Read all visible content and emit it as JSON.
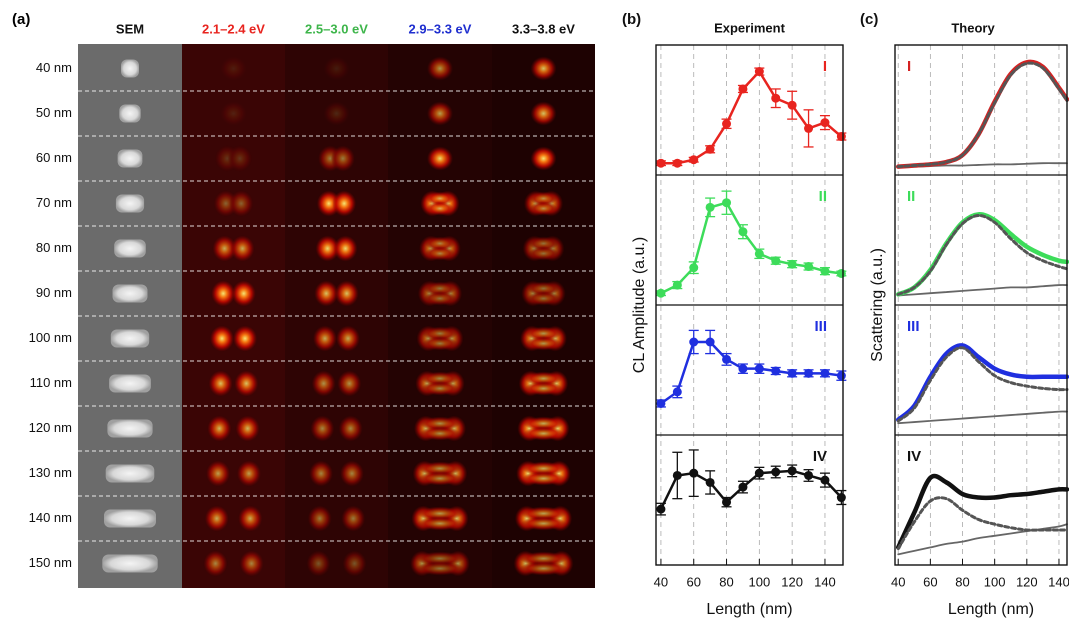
{
  "panel_a": {
    "label": "(a)",
    "columns": [
      {
        "text": "SEM",
        "color": "#111111"
      },
      {
        "text": "2.1–2.4 eV",
        "color": "#e8241f"
      },
      {
        "text": "2.5–3.0 eV",
        "color": "#3db54a"
      },
      {
        "text": "2.9–3.3 eV",
        "color": "#1f2fcf"
      },
      {
        "text": "3.3–3.8 eV",
        "color": "#111111"
      }
    ],
    "rows": [
      "40 nm",
      "50 nm",
      "60 nm",
      "70 nm",
      "80 nm",
      "90 nm",
      "100 nm",
      "110 nm",
      "120 nm",
      "130 nm",
      "140 nm",
      "150 nm"
    ]
  },
  "chart_data": [
    {
      "type": "line",
      "label": "(b)",
      "title": "Experiment",
      "xlabel": "Length (nm)",
      "ylabel": "CL Amplitude (a.u.)",
      "xlim": [
        37,
        151
      ],
      "xticks": [
        40,
        60,
        80,
        100,
        120,
        140
      ],
      "grid": true,
      "markers": true,
      "x": [
        40,
        50,
        60,
        70,
        80,
        90,
        100,
        110,
        120,
        130,
        140,
        150
      ],
      "panels": [
        {
          "label": "I",
          "ylim": [
            0,
            1
          ],
          "series": [
            {
              "color": "#e8241f",
              "values": [
                0.05,
                0.05,
                0.08,
                0.17,
                0.39,
                0.69,
                0.84,
                0.61,
                0.55,
                0.35,
                0.4,
                0.28
              ],
              "errors": [
                0.02,
                0.02,
                0.02,
                0.03,
                0.04,
                0.03,
                0.03,
                0.08,
                0.12,
                0.16,
                0.06,
                0.03
              ]
            }
          ]
        },
        {
          "label": "II",
          "ylim": [
            0,
            1
          ],
          "series": [
            {
              "color": "#3ddc5a",
              "values": [
                0.05,
                0.12,
                0.27,
                0.79,
                0.83,
                0.58,
                0.39,
                0.33,
                0.3,
                0.28,
                0.24,
                0.22
              ],
              "errors": [
                0.02,
                0.03,
                0.05,
                0.08,
                0.1,
                0.06,
                0.04,
                0.03,
                0.03,
                0.03,
                0.03,
                0.02
              ]
            }
          ]
        },
        {
          "label": "III",
          "ylim": [
            0,
            1
          ],
          "series": [
            {
              "color": "#1f2fdf",
              "values": [
                0.22,
                0.32,
                0.75,
                0.75,
                0.6,
                0.52,
                0.52,
                0.5,
                0.48,
                0.48,
                0.48,
                0.46
              ],
              "errors": [
                0.03,
                0.05,
                0.1,
                0.1,
                0.05,
                0.04,
                0.04,
                0.03,
                0.03,
                0.03,
                0.03,
                0.04
              ]
            }
          ]
        },
        {
          "label": "IV",
          "ylim": [
            0,
            1
          ],
          "series": [
            {
              "color": "#111111",
              "values": [
                0.43,
                0.72,
                0.74,
                0.66,
                0.49,
                0.62,
                0.74,
                0.75,
                0.76,
                0.72,
                0.68,
                0.53
              ],
              "errors": [
                0.05,
                0.2,
                0.2,
                0.1,
                0.04,
                0.05,
                0.05,
                0.05,
                0.05,
                0.05,
                0.06,
                0.06
              ]
            }
          ]
        }
      ]
    },
    {
      "type": "line",
      "label": "(c)",
      "title": "Theory",
      "xlabel": "Length (nm)",
      "ylabel": "Scattering (a.u.)",
      "xlim": [
        38,
        145
      ],
      "xticks": [
        40,
        60,
        80,
        100,
        120,
        140
      ],
      "grid": true,
      "markers": false,
      "x": [
        40,
        50,
        60,
        70,
        80,
        90,
        100,
        110,
        120,
        130,
        140,
        145
      ],
      "panels": [
        {
          "label": "I",
          "ylim": [
            0,
            1
          ],
          "series": [
            {
              "color": "#666666",
              "style": "thin",
              "values": [
                0.02,
                0.02,
                0.025,
                0.03,
                0.03,
                0.035,
                0.04,
                0.04,
                0.045,
                0.05,
                0.05,
                0.05
              ]
            },
            {
              "color": "#d42222",
              "style": "solid",
              "values": [
                0.02,
                0.03,
                0.04,
                0.06,
                0.12,
                0.3,
                0.58,
                0.82,
                0.92,
                0.88,
                0.7,
                0.6
              ]
            },
            {
              "color": "#555555",
              "style": "dotted",
              "values": [
                0.02,
                0.03,
                0.04,
                0.06,
                0.12,
                0.3,
                0.57,
                0.81,
                0.91,
                0.87,
                0.69,
                0.59
              ]
            }
          ]
        },
        {
          "label": "II",
          "ylim": [
            0,
            1
          ],
          "series": [
            {
              "color": "#666666",
              "style": "thin",
              "values": [
                0.03,
                0.04,
                0.05,
                0.06,
                0.07,
                0.08,
                0.09,
                0.1,
                0.1,
                0.11,
                0.12,
                0.12
              ]
            },
            {
              "color": "#3ddc5a",
              "style": "solid",
              "values": [
                0.04,
                0.1,
                0.25,
                0.48,
                0.66,
                0.73,
                0.68,
                0.56,
                0.45,
                0.38,
                0.33,
                0.32
              ]
            },
            {
              "color": "#555555",
              "style": "dotted",
              "values": [
                0.04,
                0.1,
                0.24,
                0.47,
                0.65,
                0.72,
                0.66,
                0.52,
                0.4,
                0.33,
                0.28,
                0.26
              ]
            }
          ]
        },
        {
          "label": "III",
          "ylim": [
            0,
            1
          ],
          "series": [
            {
              "color": "#666666",
              "style": "thin",
              "values": [
                0.05,
                0.06,
                0.07,
                0.08,
                0.09,
                0.1,
                0.11,
                0.12,
                0.13,
                0.14,
                0.15,
                0.15
              ]
            },
            {
              "color": "#1f2fdf",
              "style": "solid",
              "values": [
                0.08,
                0.2,
                0.45,
                0.65,
                0.72,
                0.62,
                0.52,
                0.47,
                0.45,
                0.45,
                0.45,
                0.45
              ]
            },
            {
              "color": "#555555",
              "style": "dotted",
              "values": [
                0.07,
                0.18,
                0.42,
                0.62,
                0.7,
                0.58,
                0.46,
                0.4,
                0.37,
                0.35,
                0.34,
                0.34
              ]
            }
          ]
        },
        {
          "label": "IV",
          "ylim": [
            0,
            1
          ],
          "series": [
            {
              "color": "#666666",
              "style": "thin",
              "values": [
                0.04,
                0.07,
                0.1,
                0.13,
                0.15,
                0.18,
                0.2,
                0.22,
                0.24,
                0.26,
                0.28,
                0.3
              ]
            },
            {
              "color": "#111111",
              "style": "solid",
              "values": [
                0.1,
                0.4,
                0.7,
                0.66,
                0.56,
                0.53,
                0.53,
                0.55,
                0.56,
                0.58,
                0.6,
                0.6
              ]
            },
            {
              "color": "#555555",
              "style": "dotted",
              "values": [
                0.09,
                0.32,
                0.5,
                0.52,
                0.42,
                0.34,
                0.3,
                0.27,
                0.25,
                0.25,
                0.25,
                0.25
              ]
            }
          ]
        }
      ]
    }
  ]
}
